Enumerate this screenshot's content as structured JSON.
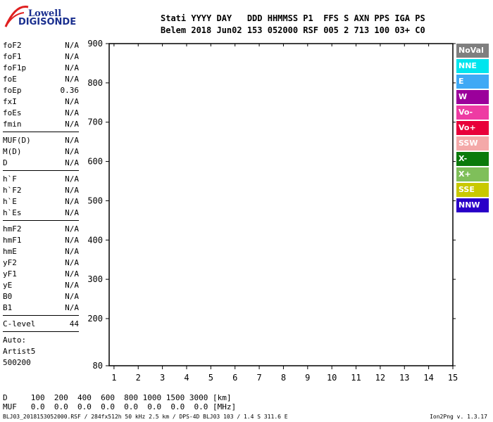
{
  "logo": {
    "line1": "Lowell",
    "line2": "DIGISONDE"
  },
  "header": {
    "line1": "Stati YYYY DAY   DDD HHMMSS P1  FFS S AXN PPS IGA PS",
    "line2": "Belem 2018 Jun02 153 052000 RSF 005 2 713 100 03+ C0"
  },
  "params_group1": [
    {
      "k": "foF2",
      "v": "N/A"
    },
    {
      "k": "foF1",
      "v": "N/A"
    },
    {
      "k": "foF1p",
      "v": "N/A"
    },
    {
      "k": "foE",
      "v": "N/A"
    },
    {
      "k": "foEp",
      "v": "0.36"
    },
    {
      "k": "fxI",
      "v": "N/A"
    },
    {
      "k": "foEs",
      "v": "N/A"
    },
    {
      "k": "fmin",
      "v": "N/A"
    }
  ],
  "params_group2": [
    {
      "k": "MUF(D)",
      "v": "N/A"
    },
    {
      "k": "M(D)",
      "v": "N/A"
    },
    {
      "k": "D",
      "v": "N/A"
    }
  ],
  "params_group3": [
    {
      "k": "h`F",
      "v": "N/A"
    },
    {
      "k": "h`F2",
      "v": "N/A"
    },
    {
      "k": "h`E",
      "v": "N/A"
    },
    {
      "k": "h`Es",
      "v": "N/A"
    }
  ],
  "params_group4": [
    {
      "k": "hmF2",
      "v": "N/A"
    },
    {
      "k": "hmF1",
      "v": "N/A"
    },
    {
      "k": "hmE",
      "v": "N/A"
    },
    {
      "k": "yF2",
      "v": "N/A"
    },
    {
      "k": "yF1",
      "v": "N/A"
    },
    {
      "k": "yE",
      "v": "N/A"
    },
    {
      "k": "B0",
      "v": "N/A"
    },
    {
      "k": "B1",
      "v": "N/A"
    }
  ],
  "clevel": {
    "k": "C-level",
    "v": "44"
  },
  "auto": [
    "Auto:",
    "Artist5",
    "500200"
  ],
  "legend": [
    {
      "label": "NoVal",
      "color": "#7f7f7f"
    },
    {
      "label": "NNE",
      "color": "#00e5ee"
    },
    {
      "label": "E",
      "color": "#3fa9f5"
    },
    {
      "label": "W",
      "color": "#9b009b"
    },
    {
      "label": "Vo-",
      "color": "#ee3ba3"
    },
    {
      "label": "Vo+",
      "color": "#e8003a"
    },
    {
      "label": "SSW",
      "color": "#f4a9a9"
    },
    {
      "label": "X-",
      "color": "#0b7a0b"
    },
    {
      "label": "X+",
      "color": "#7fbf5a"
    },
    {
      "label": "SSE",
      "color": "#c9c900"
    },
    {
      "label": "NNW",
      "color": "#2a00c8"
    }
  ],
  "bottom_table": {
    "row1": "D     100  200  400  600  800 1000 1500 3000 [km]",
    "row2": "MUF   0.0  0.0  0.0  0.0  0.0  0.0  0.0  0.0 [MHz]"
  },
  "footer": {
    "left": "BLJ03_2018153052000.RSF / 284fx512h 50 kHz 2.5 km / DPS-4D BLJ03 103 / 1.4 S 311.6 E",
    "right": "Ion2Png v. 1.3.17"
  },
  "chart_data": {
    "type": "scatter",
    "xlabel": "",
    "ylabel": "",
    "xlim": [
      0.8,
      15
    ],
    "ylim": [
      80,
      900
    ],
    "xticks": [
      1,
      2,
      3,
      4,
      5,
      6,
      7,
      8,
      9,
      10,
      11,
      12,
      13,
      14,
      15
    ],
    "yticks": [
      80,
      200,
      300,
      400,
      500,
      600,
      700,
      800,
      900
    ],
    "grid": false
  }
}
